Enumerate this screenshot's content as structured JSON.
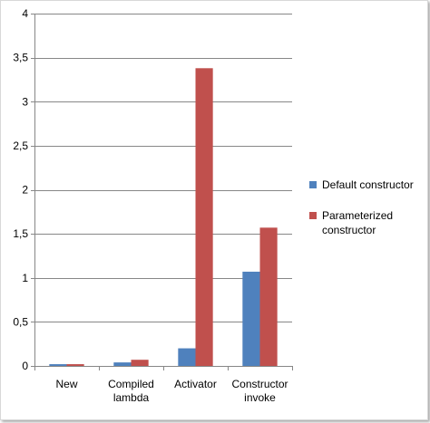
{
  "chart_data": {
    "type": "bar",
    "categories": [
      [
        "New"
      ],
      [
        "Compiled",
        "lambda"
      ],
      [
        "Activator"
      ],
      [
        "Constructor",
        "invoke"
      ]
    ],
    "series": [
      {
        "name": "Default constructor",
        "color": "#4F81BD",
        "values": [
          0.02,
          0.04,
          0.2,
          1.07
        ]
      },
      {
        "name": "Parameterized constructor",
        "name_lines": [
          "Parameterized",
          "constructor"
        ],
        "color": "#C0504D",
        "values": [
          0.02,
          0.07,
          3.38,
          1.57
        ]
      }
    ],
    "ylim": [
      0,
      4
    ],
    "yticks": [
      "0",
      "0,5",
      "1",
      "1,5",
      "2",
      "2,5",
      "3",
      "3,5",
      "4"
    ],
    "ytick_values": [
      0,
      0.5,
      1,
      1.5,
      2,
      2.5,
      3,
      3.5,
      4
    ],
    "grid": true,
    "legend_position": "right",
    "gridline_color": "#878787",
    "axis_color": "#878787"
  }
}
